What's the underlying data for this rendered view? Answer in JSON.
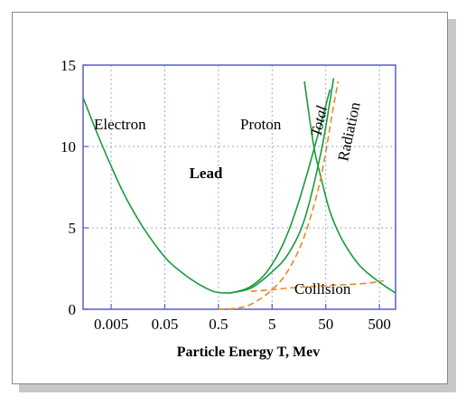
{
  "chart_data": {
    "type": "line",
    "title": "",
    "xlabel": "Particle Energy T, Mev",
    "ylabel": "",
    "x_scale": "log",
    "xlim": [
      0.0015,
      1000
    ],
    "ylim": [
      0,
      15
    ],
    "x_ticks": [
      "0.005",
      "0.05",
      "0.5",
      "5",
      "50",
      "500"
    ],
    "y_ticks": [
      "15",
      "10",
      "5",
      "0"
    ],
    "grid": true,
    "annotation": "Lead",
    "colors": {
      "solid": "#1a9a3a",
      "dashed": "#e58a1f",
      "axes": "#5a5ad0",
      "grid": "#a0a0e8"
    },
    "series": [
      {
        "name": "Electron",
        "style": "solid",
        "x": [
          0.0015,
          0.003,
          0.006,
          0.01,
          0.02,
          0.05,
          0.1,
          0.2,
          0.4,
          0.7,
          1,
          2,
          4,
          8,
          15,
          30,
          60
        ],
        "y": [
          13.0,
          10.5,
          8.2,
          6.7,
          5.0,
          3.2,
          2.3,
          1.6,
          1.1,
          1.0,
          1.05,
          1.4,
          2.3,
          4.0,
          6.4,
          9.8,
          13.5
        ]
      },
      {
        "name": "Proton",
        "style": "solid",
        "x": [
          20,
          30,
          40,
          60,
          100,
          200,
          400,
          800,
          1000
        ],
        "y": [
          14.0,
          10.0,
          8.2,
          6.0,
          4.3,
          2.8,
          1.9,
          1.2,
          1.0
        ]
      },
      {
        "name": "Total",
        "style": "solid",
        "x": [
          0.8,
          2,
          5,
          10,
          20,
          40,
          60,
          70
        ],
        "y": [
          1.0,
          1.3,
          2.3,
          3.4,
          5.5,
          9.5,
          12.8,
          14.2
        ]
      },
      {
        "name": "Radiation",
        "style": "dashed",
        "x": [
          0.5,
          1,
          2,
          5,
          10,
          20,
          40,
          70,
          85
        ],
        "y": [
          0.0,
          0.05,
          0.3,
          1.2,
          2.4,
          4.5,
          8.0,
          12.5,
          14.0
        ]
      },
      {
        "name": "Collision",
        "style": "dashed",
        "x": [
          2,
          5,
          10,
          50,
          100,
          300,
          600
        ],
        "y": [
          1.1,
          1.2,
          1.3,
          1.45,
          1.5,
          1.6,
          1.75
        ]
      }
    ]
  }
}
